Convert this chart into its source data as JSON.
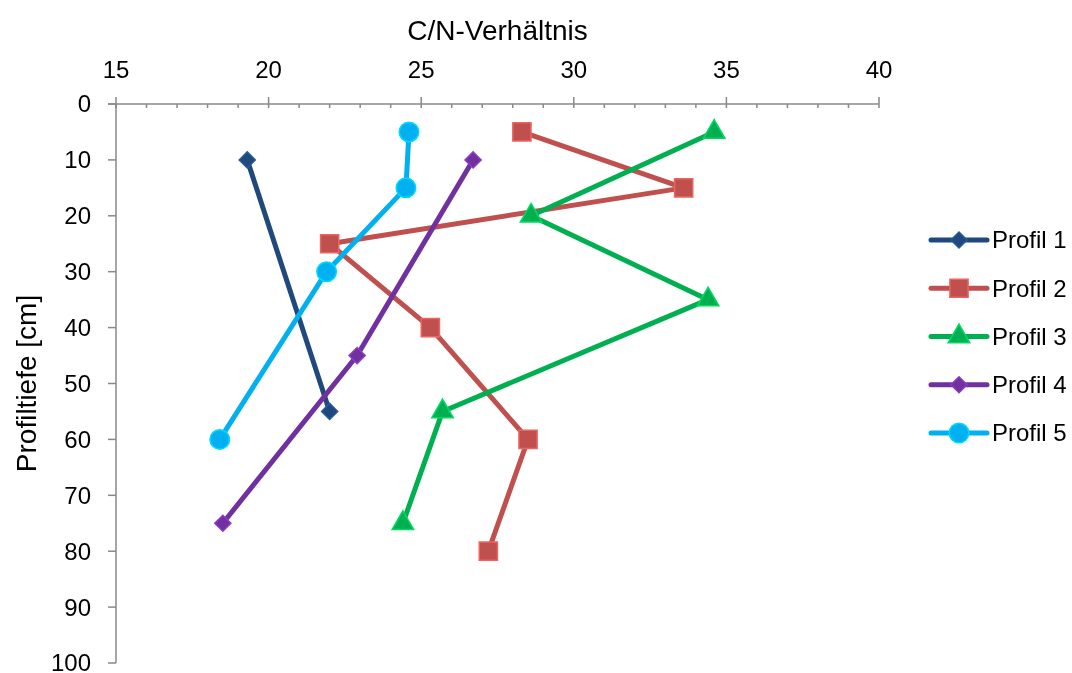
{
  "chart_data": {
    "type": "line",
    "xlabel": "C/N-Verhältnis",
    "ylabel": "Profiltiefe [cm]",
    "xlim": [
      15,
      40
    ],
    "xticks": [
      15,
      {
        "value": 16,
        "label": null
      },
      {
        "value": 17,
        "label": null
      },
      {
        "value": 18,
        "label": null
      },
      {
        "value": 19,
        "label": null
      },
      20,
      {
        "value": 21,
        "label": null
      },
      {
        "value": 22,
        "label": null
      },
      {
        "value": 23,
        "label": null
      },
      {
        "value": 24,
        "label": null
      },
      25,
      {
        "value": 26,
        "label": null
      },
      {
        "value": 27,
        "label": null
      },
      {
        "value": 28,
        "label": null
      },
      {
        "value": 29,
        "label": null
      },
      30,
      {
        "value": 31,
        "label": null
      },
      {
        "value": 32,
        "label": null
      },
      {
        "value": 33,
        "label": null
      },
      {
        "value": 34,
        "label": null
      },
      35,
      {
        "value": 36,
        "label": null
      },
      {
        "value": 37,
        "label": null
      },
      {
        "value": 38,
        "label": null
      },
      {
        "value": 39,
        "label": null
      },
      40
    ],
    "ylim": [
      100,
      0
    ],
    "yticks": [
      0,
      10,
      20,
      30,
      40,
      50,
      60,
      70,
      80,
      90,
      100
    ],
    "legend": "right",
    "series": [
      {
        "name": "Profil 1",
        "color": "#1f497d",
        "marker": "diamond",
        "x": [
          19.3,
          22.0
        ],
        "values": [
          10,
          55
        ]
      },
      {
        "name": "Profil 2",
        "color": "#c0504d",
        "marker": "square",
        "x": [
          28.3,
          33.6,
          22.0,
          25.3,
          28.5,
          27.2
        ],
        "values": [
          5,
          15,
          25,
          40,
          60,
          80
        ]
      },
      {
        "name": "Profil 3",
        "color": "#00b050",
        "marker": "triangle",
        "x": [
          34.6,
          28.6,
          34.4,
          25.7,
          24.4
        ],
        "values": [
          5,
          20,
          35,
          55,
          75
        ]
      },
      {
        "name": "Profil 4",
        "color": "#7030a0",
        "marker": "diamond",
        "x": [
          26.7,
          22.9,
          18.5
        ],
        "values": [
          10,
          45,
          75
        ]
      },
      {
        "name": "Profil 5",
        "color": "#00b0f0",
        "marker": "circle",
        "x": [
          24.6,
          24.5,
          21.9,
          18.4
        ],
        "values": [
          5,
          15,
          30,
          60
        ]
      }
    ]
  }
}
